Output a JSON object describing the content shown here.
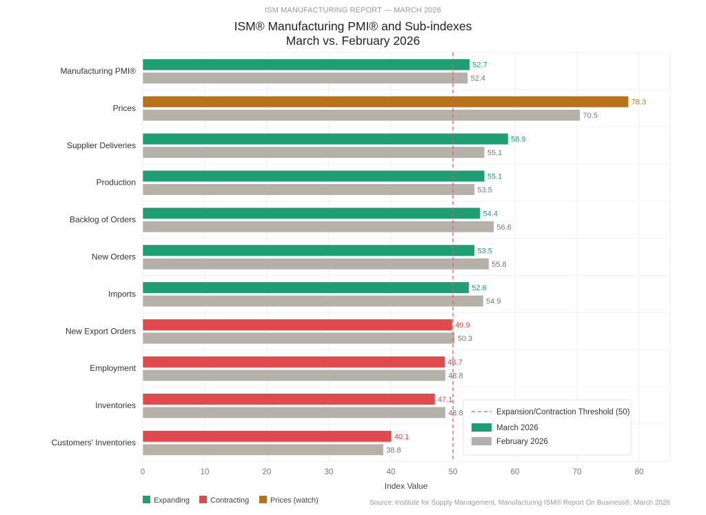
{
  "header": {
    "supertitle": "ISM MANUFACTURING REPORT — MARCH 2026",
    "title_line1": "ISM® Manufacturing PMI® and Sub-indexes",
    "title_line2": "March vs. February 2026"
  },
  "colors": {
    "expanding": "#1f9e74",
    "contracting": "#e04a4c",
    "prices": "#b8731a",
    "february": "#b5b1a8",
    "threshold": "#e05a5a",
    "expanding_label": "#1f9e74",
    "contracting_label": "#e04a4c",
    "prices_label": "#c07a28",
    "february_label": "#777777"
  },
  "chart_data": {
    "type": "bar",
    "orientation": "horizontal",
    "title": "ISM® Manufacturing PMI® and Sub-indexes March vs. February 2026",
    "categories": [
      "Manufacturing PMI®",
      "Prices",
      "Supplier Deliveries",
      "Production",
      "Backlog of Orders",
      "New Orders",
      "Imports",
      "New Export Orders",
      "Employment",
      "Inventories",
      "Customers' Inventories"
    ],
    "series": [
      {
        "name": "March 2026",
        "values": [
          52.7,
          78.3,
          58.9,
          55.1,
          54.4,
          53.5,
          52.6,
          49.9,
          48.7,
          47.1,
          40.1
        ],
        "status": [
          "expanding",
          "prices",
          "expanding",
          "expanding",
          "expanding",
          "expanding",
          "expanding",
          "contracting",
          "contracting",
          "contracting",
          "contracting"
        ]
      },
      {
        "name": "February 2026",
        "values": [
          52.4,
          70.5,
          55.1,
          53.5,
          56.6,
          55.8,
          54.9,
          50.3,
          48.8,
          48.8,
          38.8
        ]
      }
    ],
    "xlabel": "Index Value",
    "ylabel": "",
    "xlim": [
      0,
      85
    ],
    "xticks": [
      0,
      10,
      20,
      30,
      40,
      50,
      60,
      70,
      80
    ],
    "threshold": {
      "value": 50,
      "label": "Expansion/Contraction Threshold (50)"
    },
    "grid": true,
    "legend": {
      "placement": "bottom-right",
      "entries": [
        "Expansion/Contraction Threshold (50)",
        "March 2026",
        "February 2026"
      ]
    },
    "status_legend": {
      "placement": "bottom-left",
      "entries": [
        {
          "label": "Expanding",
          "key": "expanding"
        },
        {
          "label": "Contracting",
          "key": "contracting"
        },
        {
          "label": "Prices (watch)",
          "key": "prices"
        }
      ]
    },
    "source": "Source: Institute for Supply Management, Manufacturing ISM® Report On Business®, March 2026"
  }
}
